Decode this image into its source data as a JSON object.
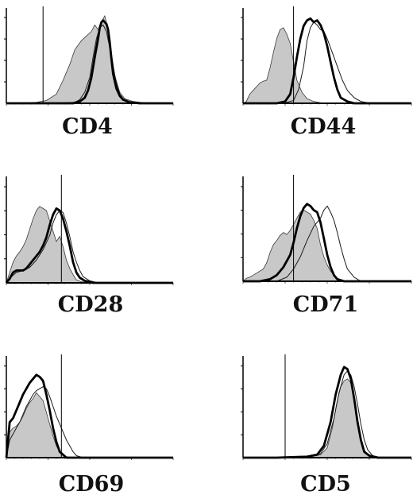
{
  "colors": {
    "fill": "#c8c8c8",
    "fill_stroke": "#3a3a3a",
    "thin_line": "#1a1a1a",
    "thick_line": "#000000",
    "axis": "#000000",
    "gate": "#000000"
  },
  "chart_data": [
    {
      "type": "histogram",
      "xlabel": "CD4",
      "xlim": [
        0,
        100
      ],
      "ylim": [
        0,
        100
      ],
      "gate_x": 22,
      "series": [
        {
          "style": "filled",
          "x": [
            0,
            10,
            18,
            24,
            30,
            34,
            38,
            41,
            43,
            45,
            48,
            51,
            53,
            55,
            57,
            59,
            61,
            63,
            65,
            68,
            71,
            76,
            85,
            100
          ],
          "y": [
            0,
            0,
            1,
            3,
            10,
            25,
            42,
            58,
            63,
            68,
            73,
            78,
            85,
            80,
            88,
            95,
            80,
            55,
            30,
            12,
            5,
            2,
            0,
            0
          ]
        },
        {
          "style": "thick",
          "x": [
            0,
            30,
            40,
            44,
            47,
            49,
            51,
            53,
            55,
            56,
            57,
            58,
            60,
            61,
            62,
            63,
            64,
            66,
            68,
            70,
            74,
            80,
            100
          ],
          "y": [
            0,
            0,
            0,
            2,
            6,
            14,
            28,
            50,
            70,
            82,
            88,
            90,
            86,
            80,
            66,
            48,
            32,
            16,
            8,
            4,
            1,
            0,
            0
          ]
        },
        {
          "style": "thin",
          "x": [
            0,
            30,
            41,
            44,
            47,
            50,
            52,
            54,
            56,
            58,
            60,
            62,
            64,
            66,
            68,
            70,
            73,
            78,
            100
          ],
          "y": [
            0,
            0,
            1,
            4,
            12,
            28,
            50,
            70,
            82,
            85,
            78,
            60,
            40,
            22,
            10,
            5,
            2,
            0,
            0
          ]
        }
      ]
    },
    {
      "type": "histogram",
      "xlabel": "CD44",
      "xlim": [
        0,
        100
      ],
      "ylim": [
        0,
        100
      ],
      "gate_x": 30,
      "series": [
        {
          "style": "filled",
          "x": [
            0,
            2,
            4,
            6,
            8,
            10,
            12,
            14,
            16,
            18,
            20,
            22,
            24,
            26,
            28,
            30,
            32,
            35,
            38,
            42,
            48,
            100
          ],
          "y": [
            0,
            2,
            10,
            14,
            18,
            22,
            24,
            25,
            38,
            55,
            70,
            80,
            82,
            75,
            65,
            45,
            25,
            12,
            5,
            2,
            0,
            0
          ]
        },
        {
          "style": "thick",
          "x": [
            0,
            20,
            25,
            28,
            30,
            32,
            34,
            36,
            38,
            40,
            42,
            44,
            46,
            48,
            50,
            52,
            54,
            56,
            58,
            62,
            66,
            100
          ],
          "y": [
            0,
            0,
            2,
            10,
            28,
            50,
            70,
            84,
            90,
            92,
            88,
            90,
            85,
            76,
            62,
            45,
            28,
            15,
            6,
            2,
            0,
            0
          ]
        },
        {
          "style": "thin",
          "x": [
            0,
            24,
            30,
            33,
            36,
            38,
            40,
            42,
            44,
            46,
            48,
            50,
            53,
            56,
            59,
            62,
            66,
            70,
            76,
            100
          ],
          "y": [
            0,
            0,
            3,
            15,
            40,
            68,
            82,
            88,
            85,
            80,
            78,
            70,
            55,
            40,
            25,
            14,
            6,
            2,
            0,
            0
          ]
        }
      ]
    },
    {
      "type": "histogram",
      "xlabel": "CD28",
      "xlim": [
        0,
        100
      ],
      "ylim": [
        0,
        100
      ],
      "gate_x": 33,
      "series": [
        {
          "style": "filled",
          "x": [
            0,
            2,
            4,
            6,
            8,
            10,
            12,
            14,
            16,
            18,
            20,
            22,
            24,
            26,
            28,
            30,
            32,
            34,
            36,
            38,
            40,
            42,
            45,
            50,
            100
          ],
          "y": [
            0,
            10,
            20,
            26,
            30,
            35,
            42,
            52,
            62,
            70,
            74,
            72,
            70,
            60,
            50,
            40,
            45,
            35,
            22,
            14,
            8,
            3,
            1,
            0,
            0
          ]
        },
        {
          "style": "thick",
          "x": [
            0,
            2,
            4,
            6,
            8,
            10,
            12,
            14,
            16,
            18,
            20,
            22,
            24,
            26,
            28,
            30,
            32,
            34,
            36,
            38,
            40,
            42,
            44,
            47,
            52,
            100
          ],
          "y": [
            0,
            4,
            10,
            12,
            12,
            12,
            14,
            18,
            22,
            26,
            30,
            36,
            44,
            56,
            66,
            72,
            70,
            62,
            50,
            36,
            20,
            10,
            5,
            2,
            0,
            0
          ]
        },
        {
          "style": "thin",
          "x": [
            0,
            3,
            6,
            10,
            14,
            18,
            22,
            26,
            28,
            30,
            32,
            34,
            36,
            38,
            40,
            42,
            44,
            46,
            50,
            55,
            100
          ],
          "y": [
            0,
            6,
            10,
            12,
            15,
            22,
            32,
            46,
            58,
            66,
            70,
            68,
            58,
            45,
            30,
            20,
            12,
            6,
            2,
            0,
            0
          ]
        }
      ]
    },
    {
      "type": "histogram",
      "xlabel": "CD71",
      "xlim": [
        0,
        100
      ],
      "ylim": [
        0,
        100
      ],
      "gate_x": 30,
      "series": [
        {
          "style": "filled",
          "x": [
            0,
            2,
            4,
            6,
            8,
            10,
            12,
            14,
            16,
            18,
            20,
            22,
            24,
            26,
            28,
            30,
            32,
            34,
            36,
            38,
            40,
            42,
            44,
            46,
            48,
            50,
            52,
            54,
            56,
            60,
            100
          ],
          "y": [
            0,
            3,
            4,
            6,
            8,
            10,
            12,
            18,
            28,
            36,
            40,
            45,
            48,
            46,
            50,
            56,
            62,
            68,
            70,
            68,
            66,
            60,
            52,
            36,
            24,
            16,
            10,
            6,
            3,
            0,
            0
          ]
        },
        {
          "style": "thick",
          "x": [
            0,
            10,
            16,
            20,
            24,
            28,
            30,
            32,
            34,
            36,
            38,
            40,
            42,
            44,
            46,
            48,
            50,
            52,
            54,
            56,
            60,
            100
          ],
          "y": [
            0,
            0,
            2,
            6,
            14,
            26,
            38,
            52,
            64,
            72,
            76,
            74,
            70,
            68,
            58,
            42,
            26,
            14,
            6,
            2,
            0,
            0
          ]
        },
        {
          "style": "thin",
          "x": [
            0,
            20,
            26,
            30,
            34,
            38,
            42,
            44,
            46,
            48,
            50,
            52,
            54,
            56,
            58,
            60,
            62,
            66,
            70,
            100
          ],
          "y": [
            0,
            0,
            4,
            12,
            24,
            40,
            54,
            58,
            62,
            70,
            74,
            68,
            60,
            48,
            34,
            22,
            12,
            4,
            0,
            0
          ]
        }
      ]
    },
    {
      "type": "histogram",
      "xlabel": "CD69",
      "xlim": [
        0,
        100
      ],
      "ylim": [
        0,
        100
      ],
      "gate_x": 33,
      "series": [
        {
          "style": "filled",
          "x": [
            0,
            2,
            4,
            6,
            8,
            10,
            12,
            14,
            16,
            18,
            20,
            22,
            24,
            26,
            28,
            30,
            32,
            34,
            36,
            40,
            100
          ],
          "y": [
            0,
            26,
            30,
            32,
            36,
            42,
            50,
            56,
            60,
            66,
            62,
            58,
            46,
            34,
            22,
            12,
            6,
            3,
            1,
            0,
            0
          ]
        },
        {
          "style": "thick",
          "x": [
            0,
            2,
            4,
            6,
            8,
            10,
            12,
            14,
            16,
            18,
            20,
            22,
            24,
            26,
            28,
            30,
            32,
            36,
            100
          ],
          "y": [
            0,
            36,
            40,
            48,
            56,
            64,
            70,
            76,
            80,
            84,
            82,
            78,
            64,
            48,
            30,
            16,
            6,
            0,
            0
          ]
        },
        {
          "style": "thin",
          "x": [
            0,
            2,
            4,
            6,
            8,
            10,
            12,
            14,
            16,
            18,
            20,
            22,
            24,
            26,
            28,
            30,
            32,
            34,
            36,
            38,
            40,
            42,
            46,
            100
          ],
          "y": [
            0,
            18,
            24,
            30,
            36,
            44,
            52,
            58,
            64,
            68,
            70,
            72,
            70,
            62,
            52,
            42,
            34,
            26,
            18,
            12,
            6,
            2,
            0,
            0
          ]
        }
      ]
    },
    {
      "type": "histogram",
      "xlabel": "CD5",
      "xlim": [
        0,
        100
      ],
      "ylim": [
        0,
        100
      ],
      "gate_x": 25,
      "series": [
        {
          "style": "filled",
          "x": [
            0,
            20,
            40,
            46,
            50,
            53,
            56,
            58,
            60,
            62,
            64,
            66,
            68,
            70,
            72,
            74,
            76,
            80,
            100
          ],
          "y": [
            0,
            0,
            1,
            3,
            10,
            30,
            58,
            72,
            78,
            80,
            76,
            62,
            40,
            20,
            8,
            3,
            1,
            0,
            0
          ]
        },
        {
          "style": "thick",
          "x": [
            0,
            20,
            38,
            44,
            48,
            52,
            55,
            58,
            60,
            62,
            64,
            66,
            68,
            70,
            72,
            75,
            80,
            100
          ],
          "y": [
            0,
            0,
            1,
            3,
            12,
            36,
            64,
            84,
            92,
            90,
            80,
            60,
            36,
            18,
            6,
            2,
            0,
            0
          ]
        },
        {
          "style": "thin",
          "x": [
            0,
            20,
            40,
            46,
            50,
            54,
            57,
            60,
            62,
            64,
            66,
            68,
            70,
            72,
            74,
            77,
            82,
            100
          ],
          "y": [
            0,
            0,
            1,
            4,
            14,
            40,
            66,
            84,
            88,
            84,
            72,
            54,
            34,
            18,
            8,
            2,
            0,
            0
          ]
        }
      ]
    }
  ]
}
